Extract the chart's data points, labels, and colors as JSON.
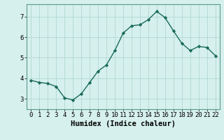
{
  "x": [
    0,
    1,
    2,
    3,
    4,
    5,
    6,
    7,
    8,
    9,
    10,
    11,
    12,
    13,
    14,
    15,
    16,
    17,
    18,
    19,
    20,
    21,
    22
  ],
  "y": [
    3.9,
    3.8,
    3.75,
    3.6,
    3.05,
    2.95,
    3.25,
    3.8,
    4.35,
    4.65,
    5.35,
    6.2,
    6.55,
    6.6,
    6.85,
    7.25,
    6.95,
    6.3,
    5.7,
    5.35,
    5.55,
    5.5,
    5.1
  ],
  "line_color": "#1a6b5a",
  "marker": "D",
  "marker_size": 2.2,
  "bg_color": "#d6f0ed",
  "grid_color_major": "#b0d8d2",
  "grid_color_minor": "#c8e8e4",
  "xlabel": "Humidex (Indice chaleur)",
  "xlabel_fontsize": 7.5,
  "tick_fontsize": 6.5,
  "ylim": [
    2.5,
    7.6
  ],
  "xlim": [
    -0.5,
    22.5
  ],
  "yticks": [
    3,
    4,
    5,
    6,
    7
  ],
  "xticks": [
    0,
    1,
    2,
    3,
    4,
    5,
    6,
    7,
    8,
    9,
    10,
    11,
    12,
    13,
    14,
    15,
    16,
    17,
    18,
    19,
    20,
    21,
    22
  ],
  "linewidth": 1.0,
  "spine_color": "#5a9a8a"
}
